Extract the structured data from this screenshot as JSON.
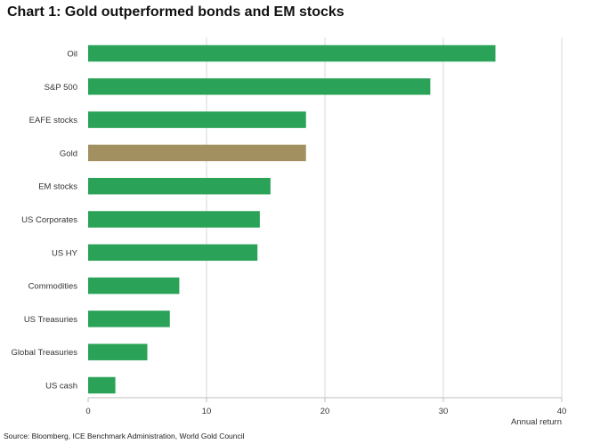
{
  "title": "Chart 1: Gold outperformed bonds and EM stocks",
  "source": "Source: Bloomberg, ICE Benchmark Administration, World Gold Council",
  "colors": {
    "bar": "#2aa257",
    "highlight": "#a39060",
    "grid": "#d9d9d9"
  },
  "chart_data": {
    "type": "bar",
    "orientation": "horizontal",
    "categories": [
      "Oil",
      "S&P 500",
      "EAFE stocks",
      "Gold",
      "EM stocks",
      "US Corporates",
      "US HY",
      "Commodities",
      "US Treasuries",
      "Global Treasuries",
      "US cash"
    ],
    "values": [
      34.4,
      28.9,
      18.4,
      18.4,
      15.4,
      14.5,
      14.3,
      7.7,
      6.9,
      5.0,
      2.3
    ],
    "highlight_category": "Gold",
    "xlim": [
      0,
      40
    ],
    "xticks": [
      0,
      10,
      20,
      30,
      40
    ],
    "xlabel": "Annual return",
    "ylabel": "",
    "grid": "vertical"
  }
}
